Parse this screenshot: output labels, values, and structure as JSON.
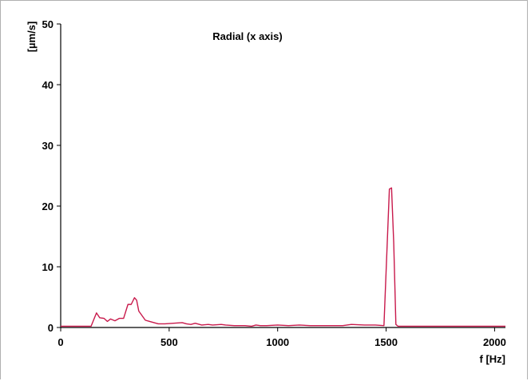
{
  "chart_data": {
    "type": "line",
    "title": "Radial (x axis)",
    "xlabel": "f [Hz]",
    "ylabel": "[µm/s]",
    "xlim": [
      0,
      2050
    ],
    "ylim": [
      0,
      50
    ],
    "xticks": [
      0,
      500,
      1000,
      1500,
      2000
    ],
    "yticks": [
      0,
      10,
      20,
      30,
      40,
      50
    ],
    "grid": false,
    "line_color": "#c8194b",
    "series": [
      {
        "x": [
          0,
          50,
          100,
          140,
          165,
          180,
          200,
          215,
          230,
          250,
          270,
          290,
          310,
          325,
          340,
          350,
          360,
          370,
          390,
          410,
          430,
          450,
          480,
          520,
          560,
          580,
          600,
          620,
          650,
          680,
          700,
          740,
          760,
          800,
          850,
          880,
          900,
          920,
          950,
          1000,
          1050,
          1100,
          1150,
          1200,
          1250,
          1300,
          1340,
          1400,
          1450,
          1490,
          1515,
          1525,
          1535,
          1545,
          1555,
          1570,
          1600,
          1700,
          1800,
          1900,
          2000,
          2050
        ],
        "y": [
          0.2,
          0.2,
          0.2,
          0.2,
          2.4,
          1.6,
          1.5,
          1.0,
          1.4,
          1.1,
          1.5,
          1.5,
          3.8,
          3.8,
          4.9,
          4.5,
          2.7,
          2.2,
          1.2,
          1.0,
          0.8,
          0.6,
          0.6,
          0.7,
          0.8,
          0.6,
          0.5,
          0.7,
          0.4,
          0.5,
          0.4,
          0.5,
          0.4,
          0.3,
          0.3,
          0.2,
          0.4,
          0.3,
          0.3,
          0.4,
          0.3,
          0.4,
          0.3,
          0.3,
          0.3,
          0.3,
          0.5,
          0.4,
          0.4,
          0.3,
          22.8,
          23.0,
          14.0,
          0.5,
          0.2,
          0.2,
          0.2,
          0.2,
          0.2,
          0.2,
          0.2,
          0.2
        ]
      }
    ]
  }
}
